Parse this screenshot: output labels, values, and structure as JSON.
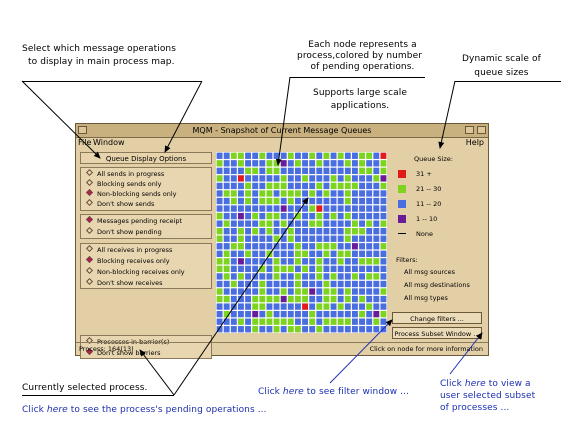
{
  "annotations": {
    "select_ops": [
      "Select which message operations",
      "to display in main process map."
    ],
    "each_node": [
      "Each node represents a",
      "process,colored by number",
      "of pending operations."
    ],
    "dynamic_scale": [
      "Dynamic scale of",
      "queue sizes"
    ],
    "supports": [
      "Supports large scale",
      "applications."
    ],
    "currently_selected": "Currently selected process.",
    "click_pending": {
      "pre": "Click ",
      "here": "here",
      "post": " to see the process's pending operations ..."
    },
    "click_filter": {
      "pre": "Click ",
      "here": "here",
      "post": " to see filter window ..."
    },
    "click_subset": {
      "line1_pre": "Click ",
      "here": "here",
      "line1_post": " to view a",
      "line2": "user selected subset",
      "line3": "of processes ..."
    }
  },
  "window": {
    "title": "MQM - Snapshot of Current Message Queues",
    "menu_file": "File",
    "menu_window": "Window",
    "menu_help": "Help",
    "options_title": "Queue Display Options",
    "groups": [
      {
        "items": [
          {
            "label": "All sends in progress",
            "selected": false
          },
          {
            "label": "Blocking sends only",
            "selected": false
          },
          {
            "label": "Non-blocking sends only",
            "selected": true
          },
          {
            "label": "Don't show sends",
            "selected": false
          }
        ]
      },
      {
        "items": [
          {
            "label": "Messages pending receipt",
            "selected": true
          },
          {
            "label": "Don't show pending",
            "selected": false
          }
        ]
      },
      {
        "items": [
          {
            "label": "All receives in progress",
            "selected": false
          },
          {
            "label": "Blocking receives only",
            "selected": true
          },
          {
            "label": "Non-blocking receives only",
            "selected": false
          },
          {
            "label": "Don't show receives",
            "selected": false
          }
        ]
      },
      {
        "items": [
          {
            "label": "Processes in barrier(s)",
            "selected": false
          },
          {
            "label": "Don't show barriers",
            "selected": true
          }
        ]
      }
    ],
    "legend_title": "Queue Size:",
    "legend": [
      {
        "color": "#e01b1b",
        "label": "31 +"
      },
      {
        "color": "#7ed321",
        "label": "21 -- 30"
      },
      {
        "color": "#4a6ee0",
        "label": "11 -- 20"
      },
      {
        "color": "#6a1b9a",
        "label": "1 -- 10"
      },
      {
        "color": "#000000",
        "label": "None"
      }
    ],
    "filters_title": "Filters:",
    "filters": [
      "All msg sources",
      "All msg destinations",
      "All msg types"
    ],
    "change_filters": "Change filters ...",
    "process_subset": "Process Subset Window ...",
    "status_left": "Process: 164(13)",
    "status_right": "Click on node for more information"
  },
  "colors": {
    "red": "#e01b1b",
    "green": "#7ed321",
    "blue": "#4a6ee0",
    "purple": "#6a1b9a"
  }
}
